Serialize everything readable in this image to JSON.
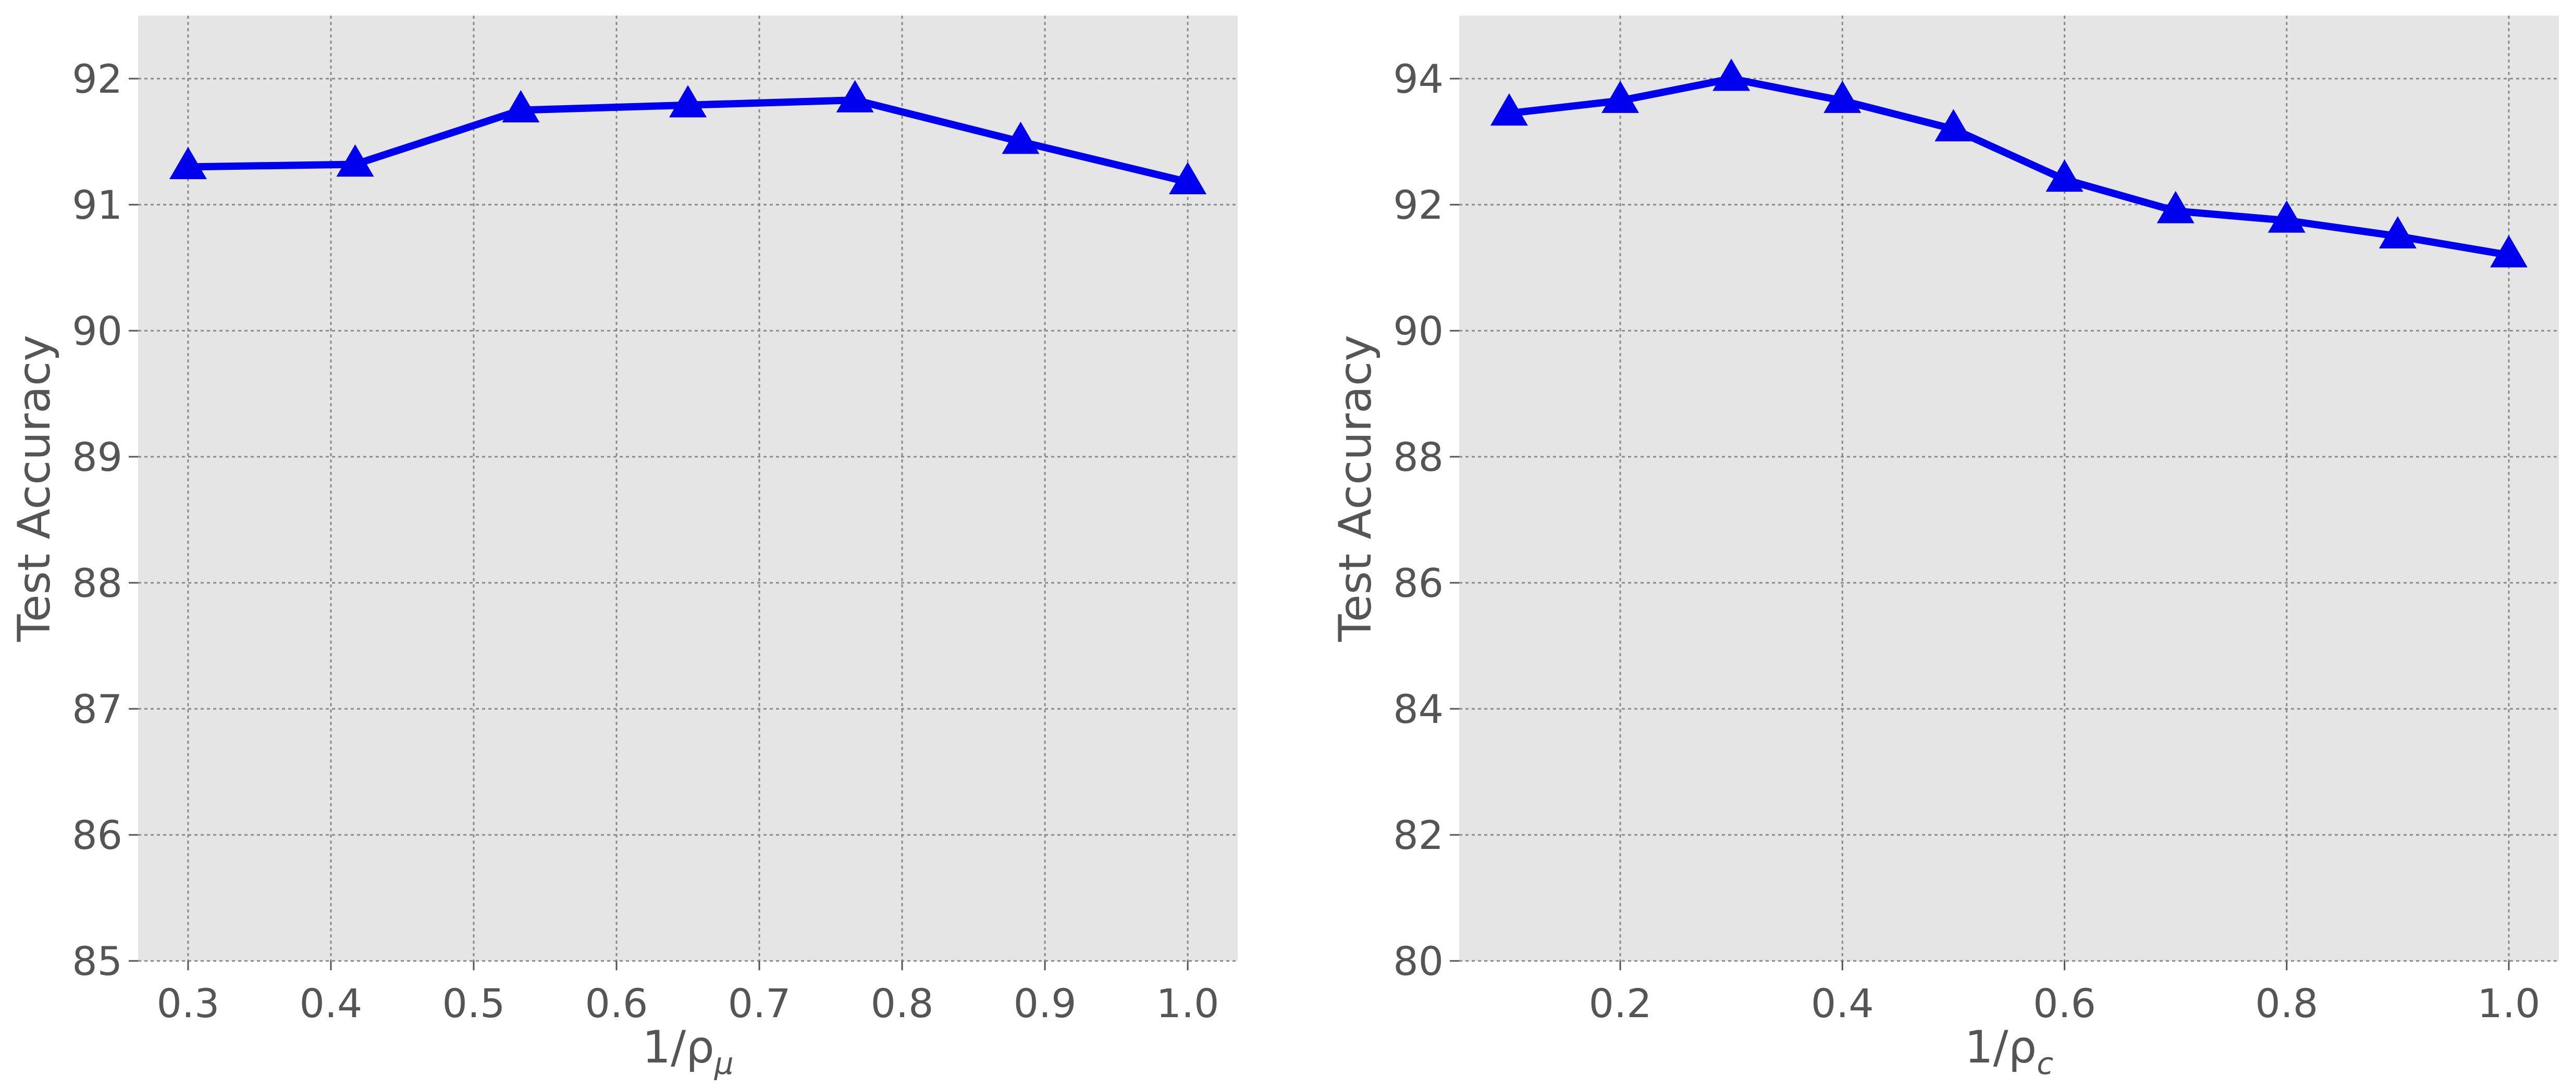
{
  "chart_data": [
    {
      "type": "line",
      "xlabel": "1/ρ",
      "xlabel_sub": "μ",
      "ylabel": "Test Accuracy",
      "xlim": [
        0.265,
        1.035
      ],
      "ylim": [
        85,
        92.5
      ],
      "xticks": [
        0.3,
        0.4,
        0.5,
        0.6,
        0.7,
        0.8,
        0.9,
        1.0
      ],
      "xtick_labels": [
        "0.3",
        "0.4",
        "0.5",
        "0.6",
        "0.7",
        "0.8",
        "0.9",
        "1.0"
      ],
      "yticks": [
        85,
        86,
        87,
        88,
        89,
        90,
        91,
        92
      ],
      "ytick_labels": [
        "85",
        "86",
        "87",
        "88",
        "89",
        "90",
        "91",
        "92"
      ],
      "grid": true,
      "series": [
        {
          "color": "#0000ee",
          "marker": "triangle",
          "x": [
            0.3,
            0.417,
            0.533,
            0.65,
            0.767,
            0.883,
            1.0
          ],
          "y": [
            91.3,
            91.32,
            91.75,
            91.79,
            91.83,
            91.5,
            91.18
          ]
        }
      ]
    },
    {
      "type": "line",
      "xlabel": "1/ρ",
      "xlabel_sub": "c",
      "ylabel": "Test Accuracy",
      "xlim": [
        0.055,
        1.045
      ],
      "ylim": [
        80,
        95
      ],
      "xticks": [
        0.2,
        0.4,
        0.6,
        0.8,
        1.0
      ],
      "xtick_labels": [
        "0.2",
        "0.4",
        "0.6",
        "0.8",
        "1.0"
      ],
      "yticks": [
        80,
        82,
        84,
        86,
        88,
        90,
        92,
        94
      ],
      "ytick_labels": [
        "80",
        "82",
        "84",
        "86",
        "88",
        "90",
        "92",
        "94"
      ],
      "grid": true,
      "series": [
        {
          "color": "#0000ee",
          "marker": "triangle",
          "x": [
            0.1,
            0.2,
            0.3,
            0.4,
            0.5,
            0.6,
            0.7,
            0.8,
            0.9,
            1.0
          ],
          "y": [
            93.45,
            93.65,
            94.0,
            93.65,
            93.2,
            92.4,
            91.9,
            91.75,
            91.5,
            91.2
          ]
        }
      ]
    }
  ]
}
